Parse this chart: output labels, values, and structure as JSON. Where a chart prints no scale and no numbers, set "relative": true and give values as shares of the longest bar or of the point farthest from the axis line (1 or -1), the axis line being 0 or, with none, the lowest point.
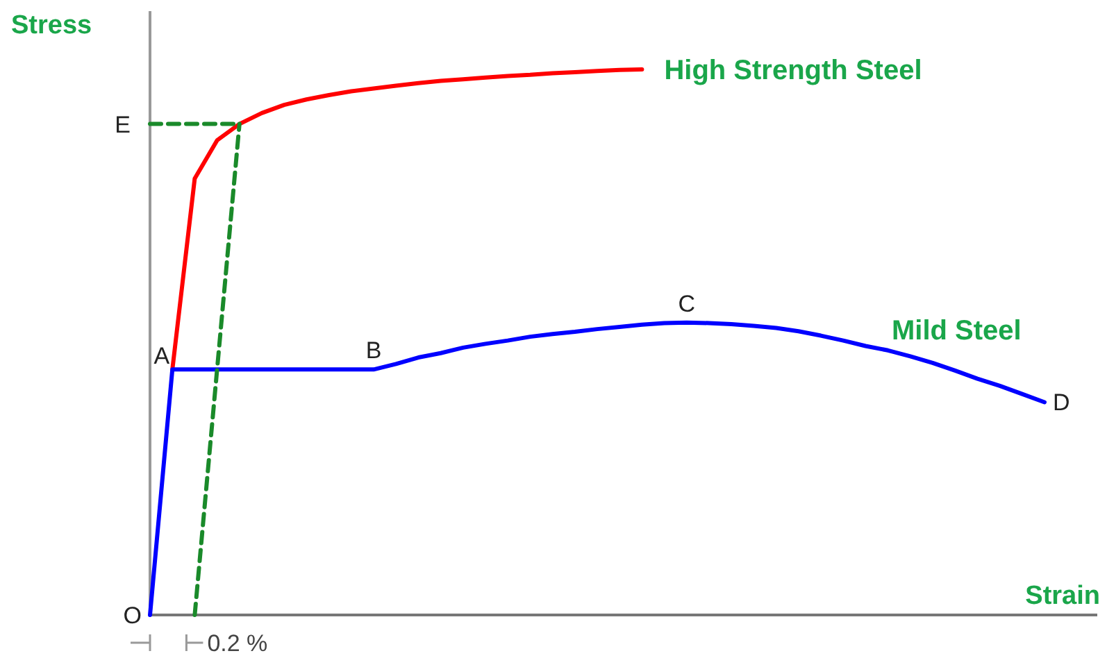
{
  "chart_data": {
    "type": "line",
    "relative": true,
    "xlabel": "Strain",
    "ylabel": "Stress",
    "marker": "none",
    "categories": [
      null,
      null,
      null,
      null,
      null,
      null,
      null,
      null,
      null,
      null,
      null,
      null,
      null,
      null,
      null,
      null,
      null,
      null,
      null,
      null,
      null,
      null,
      null,
      null,
      null,
      null,
      null,
      null,
      null,
      null,
      null,
      null,
      null,
      null,
      null,
      null,
      null,
      null,
      null,
      null,
      null
    ],
    "series": [
      {
        "name": "High Strength Steel",
        "color": "#ff0000",
        "values": [
          null,
          0.45,
          0.8,
          0.87,
          0.9,
          0.92,
          0.935,
          0.945,
          0.953,
          0.96,
          0.965,
          0.97,
          0.975,
          0.979,
          0.982,
          0.985,
          0.988,
          0.99,
          0.993,
          0.995,
          0.997,
          0.999,
          1,
          null,
          null,
          null,
          null,
          null,
          null,
          null,
          null,
          null,
          null,
          null,
          null,
          null,
          null,
          null,
          null,
          null,
          null
        ]
      },
      {
        "name": "Mild Steel",
        "color": "#0000ff",
        "values": [
          0,
          0.45,
          0.45,
          0.45,
          0.45,
          0.45,
          0.45,
          0.45,
          0.45,
          0.45,
          0.45,
          0.46,
          0.472,
          0.48,
          0.49,
          0.497,
          0.503,
          0.51,
          0.515,
          0.519,
          0.524,
          0.528,
          0.532,
          0.535,
          0.536,
          0.535,
          0.533,
          0.53,
          0.526,
          0.52,
          0.512,
          0.503,
          0.493,
          0.485,
          0.474,
          0.462,
          0.448,
          0.433,
          0.42,
          0.405,
          0.39
        ]
      },
      {
        "color": "#1a8a2a",
        "line_style": "dashed",
        "values": [
          null,
          null,
          0,
          0.45,
          0.9,
          null,
          null,
          null,
          null,
          null,
          null,
          null,
          null,
          null,
          null,
          null,
          null,
          null,
          null,
          null,
          null,
          null,
          null,
          null,
          null,
          null,
          null,
          null,
          null,
          null,
          null,
          null,
          null,
          null,
          null,
          null,
          null,
          null,
          null,
          null,
          null
        ]
      },
      {
        "color": "#1a8a2a",
        "line_style": "dashed",
        "values": [
          0.9,
          0.9,
          0.9,
          0.9,
          0.9,
          null,
          null,
          null,
          null,
          null,
          null,
          null,
          null,
          null,
          null,
          null,
          null,
          null,
          null,
          null,
          null,
          null,
          null,
          null,
          null,
          null,
          null,
          null,
          null,
          null,
          null,
          null,
          null,
          null,
          null,
          null,
          null,
          null,
          null,
          null,
          null
        ]
      }
    ],
    "annotations": [
      "O",
      "A",
      "B",
      "C",
      "D",
      "E",
      "0.2 %"
    ]
  }
}
